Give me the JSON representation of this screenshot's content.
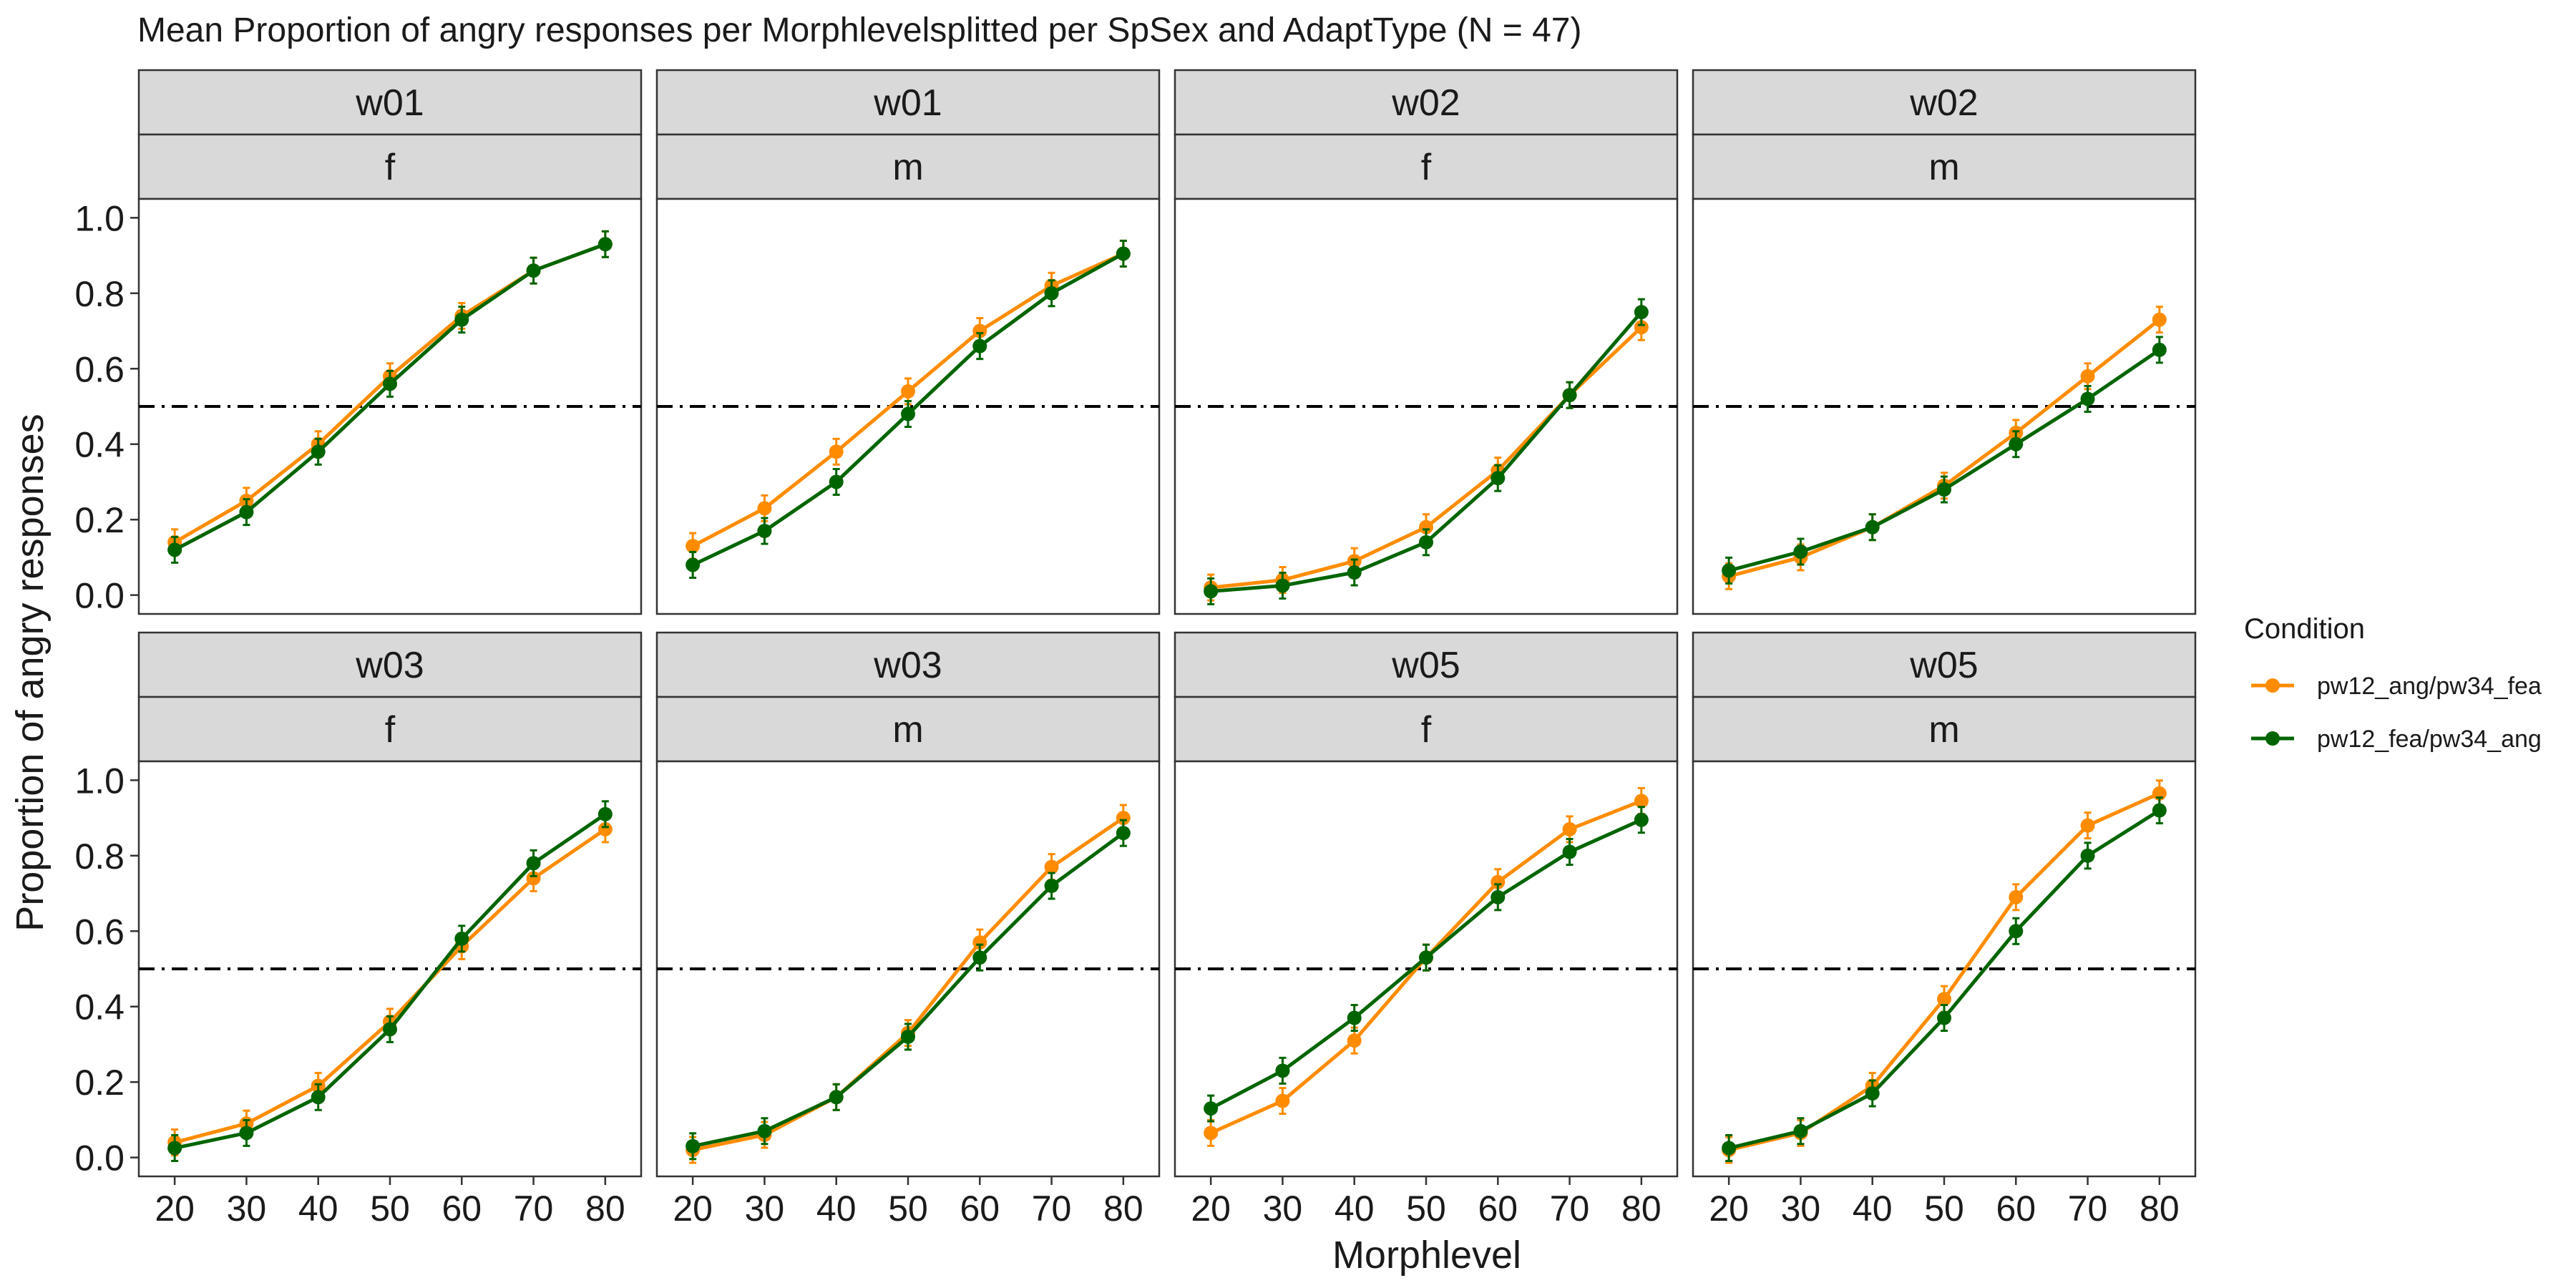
{
  "chart_data": {
    "type": "line",
    "title": "Mean Proportion of angry responses per Morphlevelsplitted per SpSex and AdaptType (N = 47)",
    "xlabel": "Morphlevel",
    "ylabel": "Proportion of angry responses",
    "x": [
      20,
      30,
      40,
      50,
      60,
      70,
      80
    ],
    "xlim": [
      15,
      85
    ],
    "ylim": [
      -0.05,
      1.05
    ],
    "yticks": [
      "0.0",
      "0.2",
      "0.4",
      "0.6",
      "0.8",
      "1.0"
    ],
    "xticks": [
      "20",
      "30",
      "40",
      "50",
      "60",
      "70",
      "80"
    ],
    "reference_line": {
      "y": 0.5,
      "style": "dot-dash"
    },
    "grid": false,
    "legend": {
      "title": "Condition",
      "placement": "right",
      "entries": [
        "pw12_ang/pw34_fea",
        "pw12_fea/pw34_ang"
      ]
    },
    "colors": {
      "pw12_ang/pw34_fea": "#ff8c00",
      "pw12_fea/pw34_ang": "#006400",
      "strip": "#d9d9d9"
    },
    "panels": [
      {
        "strip1": "w01",
        "strip2": "f",
        "series": [
          {
            "name": "pw12_ang/pw34_fea",
            "values": [
              0.14,
              0.25,
              0.4,
              0.58,
              0.74,
              0.86,
              0.93
            ]
          },
          {
            "name": "pw12_fea/pw34_ang",
            "values": [
              0.12,
              0.22,
              0.38,
              0.56,
              0.73,
              0.86,
              0.93
            ]
          }
        ]
      },
      {
        "strip1": "w01",
        "strip2": "m",
        "series": [
          {
            "name": "pw12_ang/pw34_fea",
            "values": [
              0.13,
              0.23,
              0.38,
              0.54,
              0.7,
              0.82,
              0.905
            ]
          },
          {
            "name": "pw12_fea/pw34_ang",
            "values": [
              0.08,
              0.17,
              0.3,
              0.48,
              0.66,
              0.8,
              0.905
            ]
          }
        ]
      },
      {
        "strip1": "w02",
        "strip2": "f",
        "series": [
          {
            "name": "pw12_ang/pw34_fea",
            "values": [
              0.02,
              0.04,
              0.09,
              0.18,
              0.33,
              0.53,
              0.71
            ]
          },
          {
            "name": "pw12_fea/pw34_ang",
            "values": [
              0.01,
              0.025,
              0.06,
              0.14,
              0.31,
              0.53,
              0.75
            ]
          }
        ]
      },
      {
        "strip1": "w02",
        "strip2": "m",
        "series": [
          {
            "name": "pw12_ang/pw34_fea",
            "values": [
              0.05,
              0.1,
              0.18,
              0.29,
              0.43,
              0.58,
              0.73
            ]
          },
          {
            "name": "pw12_fea/pw34_ang",
            "values": [
              0.065,
              0.115,
              0.18,
              0.28,
              0.4,
              0.52,
              0.65
            ]
          }
        ]
      },
      {
        "strip1": "w03",
        "strip2": "f",
        "series": [
          {
            "name": "pw12_ang/pw34_fea",
            "values": [
              0.04,
              0.09,
              0.19,
              0.36,
              0.56,
              0.74,
              0.87
            ]
          },
          {
            "name": "pw12_fea/pw34_ang",
            "values": [
              0.025,
              0.065,
              0.16,
              0.34,
              0.58,
              0.78,
              0.91
            ]
          }
        ]
      },
      {
        "strip1": "w03",
        "strip2": "m",
        "series": [
          {
            "name": "pw12_ang/pw34_fea",
            "values": [
              0.02,
              0.06,
              0.16,
              0.33,
              0.57,
              0.77,
              0.9
            ]
          },
          {
            "name": "pw12_fea/pw34_ang",
            "values": [
              0.03,
              0.07,
              0.16,
              0.32,
              0.53,
              0.72,
              0.86
            ]
          }
        ]
      },
      {
        "strip1": "w05",
        "strip2": "f",
        "series": [
          {
            "name": "pw12_ang/pw34_fea",
            "values": [
              0.065,
              0.15,
              0.31,
              0.53,
              0.73,
              0.87,
              0.945
            ]
          },
          {
            "name": "pw12_fea/pw34_ang",
            "values": [
              0.13,
              0.23,
              0.37,
              0.53,
              0.69,
              0.81,
              0.895
            ]
          }
        ]
      },
      {
        "strip1": "w05",
        "strip2": "m",
        "series": [
          {
            "name": "pw12_ang/pw34_fea",
            "values": [
              0.02,
              0.065,
              0.19,
              0.42,
              0.69,
              0.88,
              0.965
            ]
          },
          {
            "name": "pw12_fea/pw34_ang",
            "values": [
              0.025,
              0.07,
              0.17,
              0.37,
              0.6,
              0.8,
              0.92
            ]
          }
        ]
      }
    ]
  }
}
